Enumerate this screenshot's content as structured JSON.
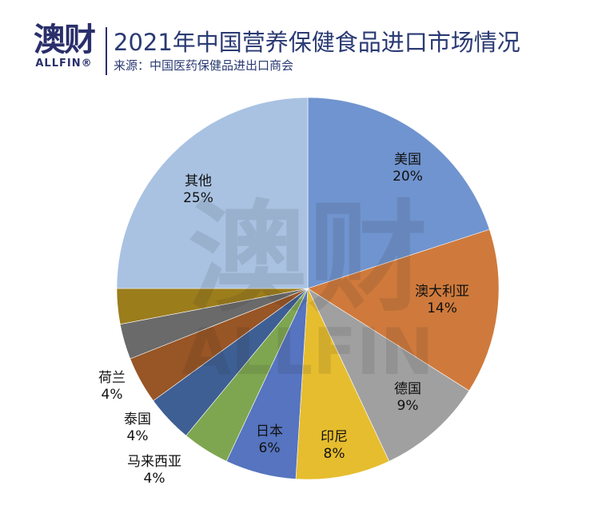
{
  "header": {
    "logo_cn": "澳财",
    "logo_en": "ALLFIN®",
    "title": "2021年中国营养保健食品进口市场情况",
    "source": "来源：中国医药保健品进出口商会"
  },
  "watermark": {
    "cn": "澳财",
    "en": "ALLFIN"
  },
  "chart_data": {
    "type": "pie",
    "title": "2021年中国营养保健食品进口市场情况",
    "start": "12 o'clock, clockwise",
    "slices": [
      {
        "label": "美国",
        "value": 20,
        "display": "20%",
        "color": "#7094cf",
        "labeled": true
      },
      {
        "label": "澳大利亚",
        "value": 14,
        "display": "14%",
        "color": "#cf7a3c",
        "labeled": true
      },
      {
        "label": "德国",
        "value": 9,
        "display": "9%",
        "color": "#a0a0a0",
        "labeled": true
      },
      {
        "label": "印尼",
        "value": 8,
        "display": "8%",
        "color": "#e6bd2e",
        "labeled": true
      },
      {
        "label": "日本",
        "value": 6,
        "display": "6%",
        "color": "#5674bf",
        "labeled": true
      },
      {
        "label": "马来西亚",
        "value": 4,
        "display": "4%",
        "color": "#7ea650",
        "labeled": true
      },
      {
        "label": "泰国",
        "value": 4,
        "display": "4%",
        "color": "#3e5f93",
        "labeled": true
      },
      {
        "label": "荷兰",
        "value": 4,
        "display": "4%",
        "color": "#985525",
        "labeled": true
      },
      {
        "label": "",
        "value": 3,
        "display": "",
        "color": "#6a6a6a",
        "labeled": false
      },
      {
        "label": "",
        "value": 3,
        "display": "",
        "color": "#9c7d1c",
        "labeled": false
      },
      {
        "label": "其他",
        "value": 25,
        "display": "25%",
        "color": "#a9c2e2",
        "labeled": true
      }
    ]
  }
}
